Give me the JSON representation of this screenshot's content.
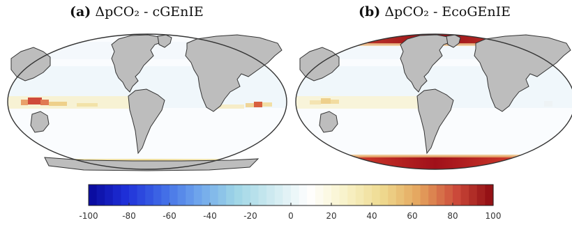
{
  "panels": [
    {
      "label": "(a)",
      "title_text": "ΔpCO₂ - cGEnIE"
    },
    {
      "label": "(b)",
      "title_text": "ΔpCO₂ - EcoGEnIE"
    }
  ],
  "colorbar": {
    "min": -100,
    "max": 100,
    "ticks": [
      "-100",
      "-80",
      "-60",
      "-40",
      "-20",
      "0",
      "20",
      "40",
      "60",
      "80",
      "100"
    ],
    "colors": [
      "#08089a",
      "#1e2fd8",
      "#3f6ae6",
      "#6fa6ec",
      "#9fd6e6",
      "#cfeaf0",
      "#ffffff",
      "#f8f2c8",
      "#eed98e",
      "#e4a35c",
      "#cc4a3a",
      "#8e0a10"
    ]
  },
  "colors": {
    "land": "#bdbdbd",
    "ocean_bg": "#fafcfe",
    "outline": "#333333"
  }
}
